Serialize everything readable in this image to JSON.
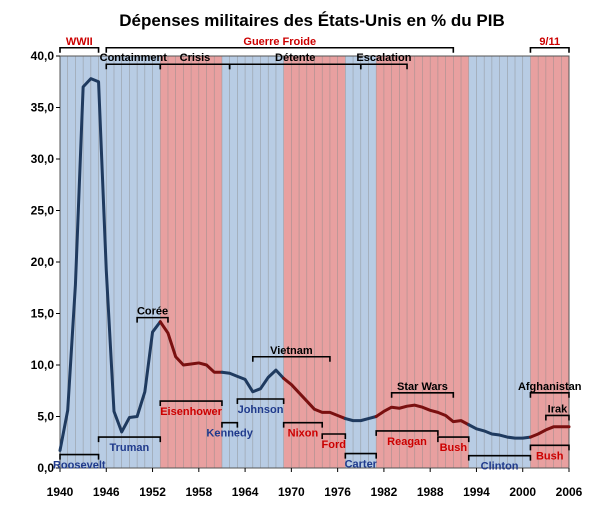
{
  "colors": {
    "republican_band": "#e8a0a0",
    "democrat_band": "#b8cce4",
    "dem_line": "#1f3a5f",
    "rep_line": "#7a1010",
    "dem_text": "#1f3a8c",
    "rep_text": "#cc0000"
  },
  "chart_data": {
    "type": "line",
    "title": "Dépenses militaires des États-Unis  en % du PIB",
    "xlim": [
      1940,
      2006
    ],
    "ylim": [
      0,
      40
    ],
    "x_ticks": [
      "1940",
      "1946",
      "1952",
      "1958",
      "1964",
      "1970",
      "1976",
      "1982",
      "1988",
      "1994",
      "2000",
      "2006"
    ],
    "y_ticks": [
      "0,0",
      "5,0",
      "10,0",
      "15,0",
      "20,0",
      "25,0",
      "30,0",
      "35,0",
      "40,0"
    ],
    "grid": "vertical yearly lines",
    "series": [
      {
        "party": "democrat",
        "x": [
          1940,
          1941,
          1942,
          1943,
          1944,
          1945,
          1946,
          1947,
          1948,
          1949,
          1950,
          1951,
          1952,
          1953
        ],
        "y": [
          1.7,
          5.6,
          17.8,
          37.0,
          37.8,
          37.5,
          19.2,
          5.5,
          3.5,
          4.9,
          5.0,
          7.4,
          13.2,
          14.2
        ]
      },
      {
        "party": "republican",
        "x": [
          1953,
          1954,
          1955,
          1956,
          1957,
          1958,
          1959,
          1960,
          1961
        ],
        "y": [
          14.2,
          13.1,
          10.8,
          10.0,
          10.1,
          10.2,
          10.0,
          9.3,
          9.3
        ]
      },
      {
        "party": "democrat",
        "x": [
          1961,
          1962,
          1963,
          1964,
          1965,
          1966,
          1967,
          1968,
          1969
        ],
        "y": [
          9.3,
          9.2,
          8.9,
          8.6,
          7.4,
          7.7,
          8.8,
          9.5,
          8.7
        ]
      },
      {
        "party": "republican",
        "x": [
          1969,
          1970,
          1971,
          1972,
          1973,
          1974,
          1975,
          1976,
          1977
        ],
        "y": [
          8.7,
          8.1,
          7.3,
          6.5,
          5.7,
          5.4,
          5.4,
          5.1,
          4.8
        ]
      },
      {
        "party": "democrat",
        "x": [
          1977,
          1978,
          1979,
          1980,
          1981
        ],
        "y": [
          4.8,
          4.6,
          4.6,
          4.8,
          5.0
        ]
      },
      {
        "party": "republican",
        "x": [
          1981,
          1982,
          1983,
          1984,
          1985,
          1986,
          1987,
          1988,
          1989,
          1990,
          1991,
          1992,
          1993
        ],
        "y": [
          5.0,
          5.5,
          5.9,
          5.8,
          6.0,
          6.1,
          5.9,
          5.6,
          5.4,
          5.1,
          4.5,
          4.6,
          4.2
        ]
      },
      {
        "party": "democrat",
        "x": [
          1993,
          1994,
          1995,
          1996,
          1997,
          1998,
          1999,
          2000,
          2001
        ],
        "y": [
          4.2,
          3.8,
          3.6,
          3.3,
          3.2,
          3.0,
          2.9,
          2.9,
          3.0
        ]
      },
      {
        "party": "republican",
        "x": [
          2001,
          2002,
          2003,
          2004,
          2005,
          2006
        ],
        "y": [
          3.0,
          3.3,
          3.7,
          4.0,
          4.0,
          4.0
        ]
      }
    ],
    "bands": [
      {
        "party": "democrat",
        "from": 1940,
        "to": 1953
      },
      {
        "party": "republican",
        "from": 1953,
        "to": 1961
      },
      {
        "party": "democrat",
        "from": 1961,
        "to": 1969
      },
      {
        "party": "republican",
        "from": 1969,
        "to": 1977
      },
      {
        "party": "democrat",
        "from": 1977,
        "to": 1981
      },
      {
        "party": "republican",
        "from": 1981,
        "to": 1993
      },
      {
        "party": "democrat",
        "from": 1993,
        "to": 2001
      },
      {
        "party": "republican",
        "from": 2001,
        "to": 2006
      }
    ],
    "presidents": [
      {
        "label": "Roosevelt",
        "from": 1940,
        "to": 1945,
        "party": "democrat",
        "y": 1.3
      },
      {
        "label": "Truman",
        "from": 1945,
        "to": 1953,
        "party": "democrat",
        "y": 3.0
      },
      {
        "label": "Eisenhower",
        "from": 1953,
        "to": 1961,
        "party": "republican",
        "y": 6.5
      },
      {
        "label": "Kennedy",
        "from": 1961,
        "to": 1963,
        "party": "democrat",
        "y": 4.4
      },
      {
        "label": "Johnson",
        "from": 1963,
        "to": 1969,
        "party": "democrat",
        "y": 6.7
      },
      {
        "label": "Nixon",
        "from": 1969,
        "to": 1974,
        "party": "republican",
        "y": 4.4
      },
      {
        "label": "Ford",
        "from": 1974,
        "to": 1977,
        "party": "republican",
        "y": 3.3
      },
      {
        "label": "Carter",
        "from": 1977,
        "to": 1981,
        "party": "democrat",
        "y": 1.4
      },
      {
        "label": "Reagan",
        "from": 1981,
        "to": 1989,
        "party": "republican",
        "y": 3.6
      },
      {
        "label": "Bush",
        "from": 1989,
        "to": 1993,
        "party": "republican",
        "y": 3.0
      },
      {
        "label": "Clinton",
        "from": 1993,
        "to": 2001,
        "party": "democrat",
        "y": 1.2
      },
      {
        "label": "Bush",
        "from": 2001,
        "to": 2006,
        "party": "republican",
        "y": 2.2
      }
    ],
    "events": [
      {
        "label": "WWII",
        "from": 1940,
        "to": 1945,
        "y": 40.8,
        "color": "rep"
      },
      {
        "label": "Guerre Froide",
        "from": 1946,
        "to": 1991,
        "y": 40.8,
        "color": "rep"
      },
      {
        "label": "9/11",
        "from": 2001,
        "to": 2006,
        "y": 40.8,
        "color": "rep"
      },
      {
        "label": "Containment",
        "from": 1946,
        "to": 1953,
        "y": 39.2,
        "color": "black"
      },
      {
        "label": "Crisis",
        "from": 1953,
        "to": 1962,
        "y": 39.2,
        "color": "black"
      },
      {
        "label": "Détente",
        "from": 1962,
        "to": 1979,
        "y": 39.2,
        "color": "black"
      },
      {
        "label": "Escalation",
        "from": 1979,
        "to": 1985,
        "y": 39.2,
        "color": "black"
      },
      {
        "label": "Corée",
        "from": 1950,
        "to": 1954,
        "y": 14.6,
        "color": "black"
      },
      {
        "label": "Vietnam",
        "from": 1965,
        "to": 1975,
        "y": 10.8,
        "color": "black"
      },
      {
        "label": "Star Wars",
        "from": 1983,
        "to": 1991,
        "y": 7.3,
        "color": "black"
      },
      {
        "label": "Afghanistan",
        "from": 2001,
        "to": 2006,
        "y": 7.3,
        "color": "black"
      },
      {
        "label": "Irak",
        "from": 2003,
        "to": 2006,
        "y": 5.1,
        "color": "black"
      }
    ]
  }
}
